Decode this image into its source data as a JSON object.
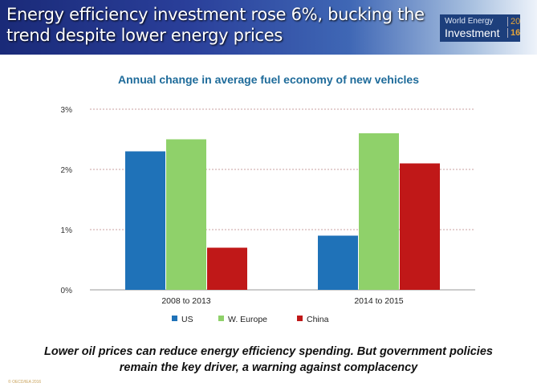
{
  "slide": {
    "title": "Energy efficiency investment rose 6%, bucking the trend despite lower energy prices",
    "logo": {
      "line1": "World Energy",
      "line2": "Investment",
      "year1": "20",
      "year2": "16"
    },
    "footer": "Lower oil prices can reduce energy efficiency spending. But government policies remain the key driver, a warning against complacency",
    "copyright": "© OECD/IEA 2016"
  },
  "chart_data": {
    "type": "bar",
    "title": "Annual change in average fuel economy of new vehicles",
    "categories": [
      "2008 to 2013",
      "2014 to 2015"
    ],
    "series": [
      {
        "name": "US",
        "values": [
          2.3,
          0.9
        ],
        "color": "#1f72b8"
      },
      {
        "name": "W. Europe",
        "values": [
          2.5,
          2.6
        ],
        "color": "#8fd16a"
      },
      {
        "name": "China",
        "values": [
          0.7,
          2.1
        ],
        "color": "#c01818"
      }
    ],
    "ylim": [
      0,
      3
    ],
    "yticks": [
      "0%",
      "1%",
      "2%",
      "3%"
    ],
    "grid": true,
    "legend": "bottom"
  }
}
